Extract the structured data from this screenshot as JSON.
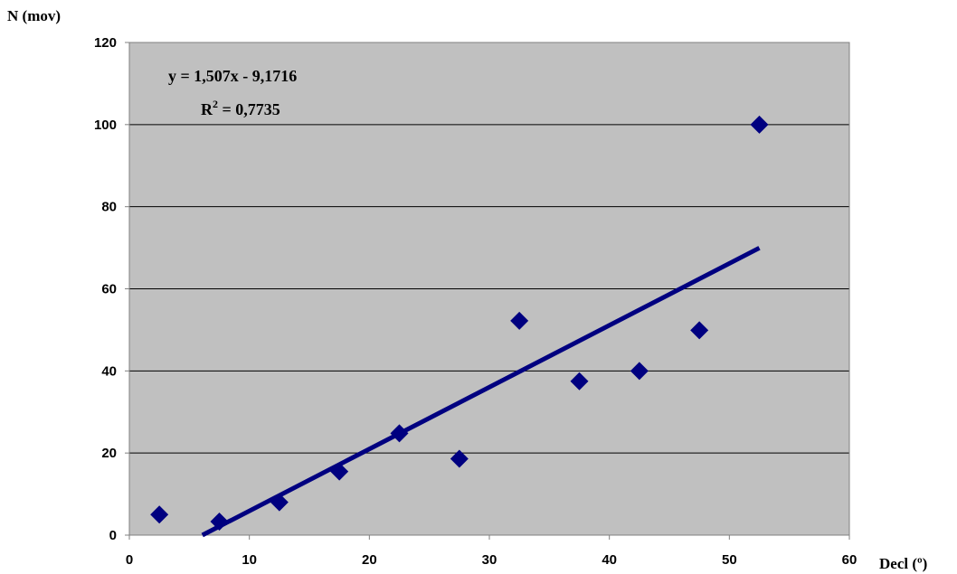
{
  "chart_data": {
    "type": "scatter",
    "title": "",
    "xlabel": "Decl (º)",
    "ylabel": "N (mov)",
    "xlim": [
      0,
      60
    ],
    "ylim": [
      0,
      120
    ],
    "x_ticks": [
      "0",
      "10",
      "20",
      "30",
      "40",
      "50",
      "60"
    ],
    "y_ticks": [
      "0",
      "20",
      "40",
      "60",
      "80",
      "100",
      "120"
    ],
    "grid": true,
    "series": [
      {
        "points": [
          {
            "x": 2.5,
            "y": 5
          },
          {
            "x": 7.5,
            "y": 3.3
          },
          {
            "x": 12.5,
            "y": 8
          },
          {
            "x": 17.5,
            "y": 15.5
          },
          {
            "x": 22.5,
            "y": 24.8
          },
          {
            "x": 27.5,
            "y": 18.6
          },
          {
            "x": 32.5,
            "y": 52.2
          },
          {
            "x": 37.5,
            "y": 37.5
          },
          {
            "x": 42.5,
            "y": 40
          },
          {
            "x": 47.5,
            "y": 49.9
          },
          {
            "x": 52.5,
            "y": 100
          }
        ]
      }
    ],
    "trendline": {
      "type": "linear",
      "slope": 1.507,
      "intercept": -9.1716,
      "equation_label": "y = 1,507x - 9,1716",
      "r2_prefix": "R",
      "r2_sup": "2",
      "r2_value": " = 0,7735"
    },
    "colors": {
      "plot_bg": "#c0c0c0",
      "marker": "#000080",
      "trendline": "#000080",
      "grid": "#000000"
    }
  }
}
